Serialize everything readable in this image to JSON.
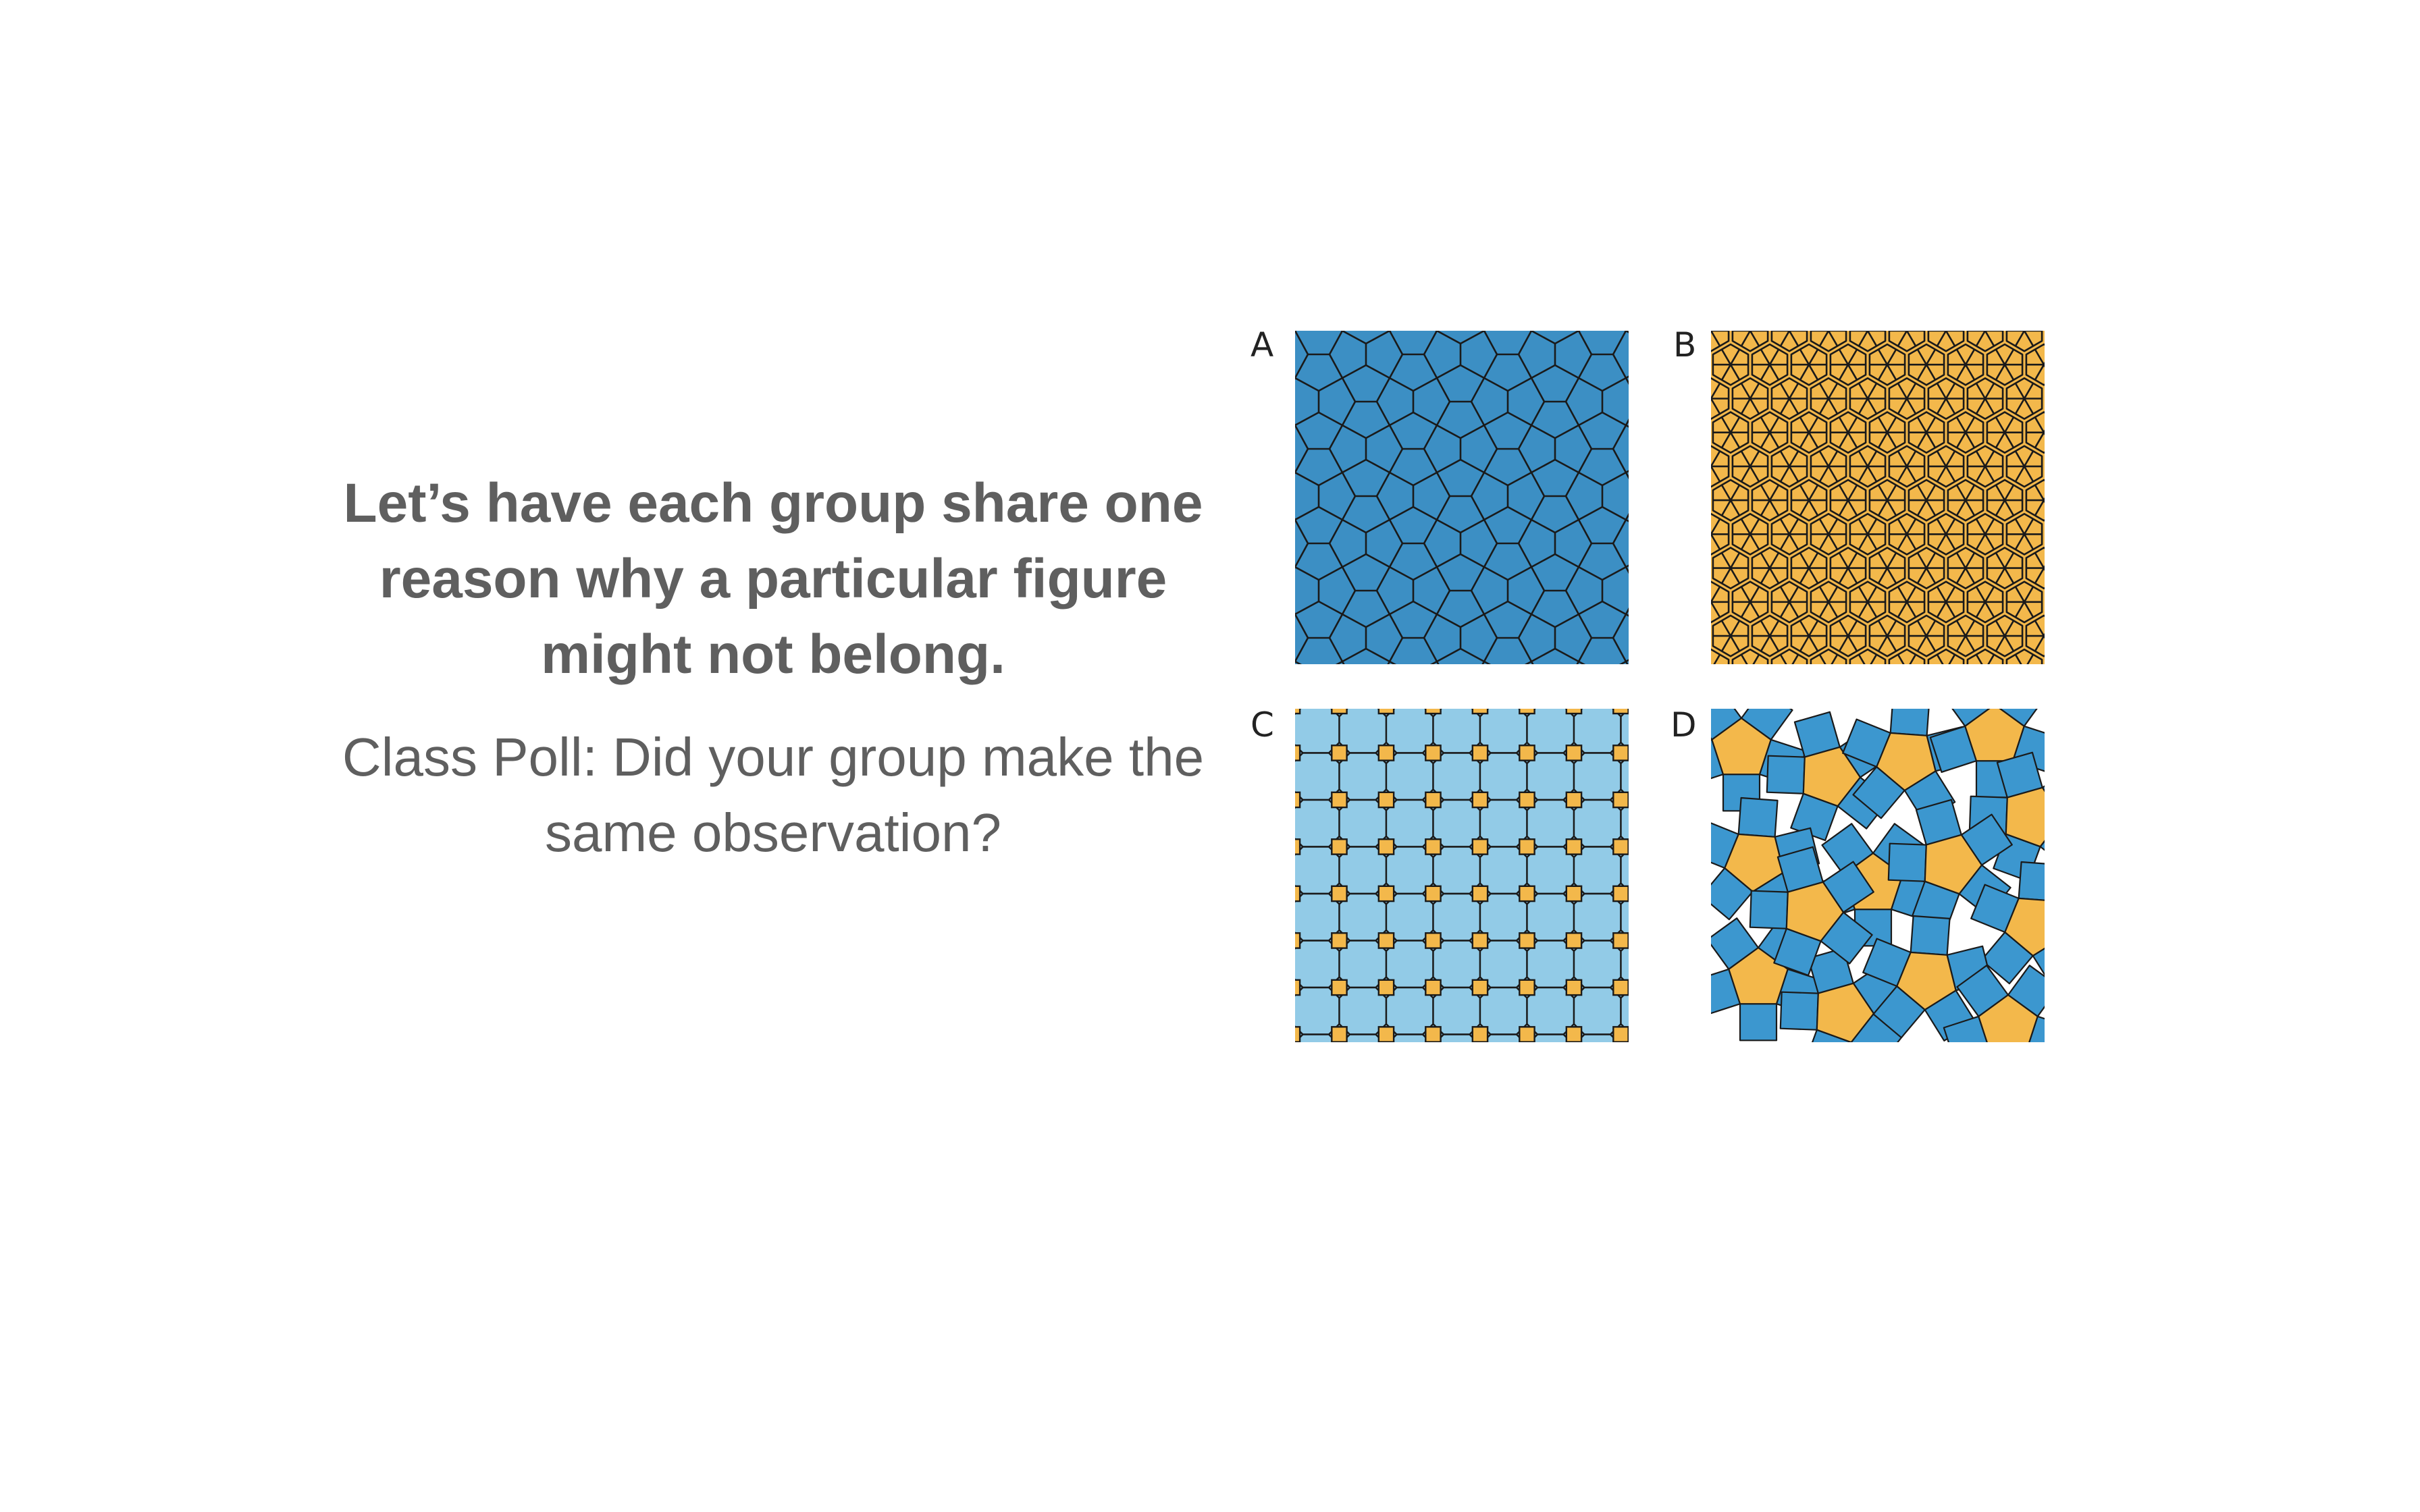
{
  "prompt": "Let’s have each group share one reason why a particular figure might not belong.",
  "poll": "Class Poll: Did your group make the same observation?",
  "figures": [
    {
      "label": "A",
      "colors": {
        "fill": "#3c8fc4",
        "stroke": "#1a1a1a"
      }
    },
    {
      "label": "B",
      "colors": {
        "fill": "#f3b84b",
        "stroke": "#1a1a1a"
      }
    },
    {
      "label": "C",
      "colors": {
        "octagon": "#92cbe7",
        "square": "#f3b84b",
        "stroke": "#1a1a1a"
      }
    },
    {
      "label": "D",
      "colors": {
        "pentagon": "#f3b84b",
        "square": "#3c97cf",
        "stroke": "#1a1a1a"
      }
    }
  ]
}
